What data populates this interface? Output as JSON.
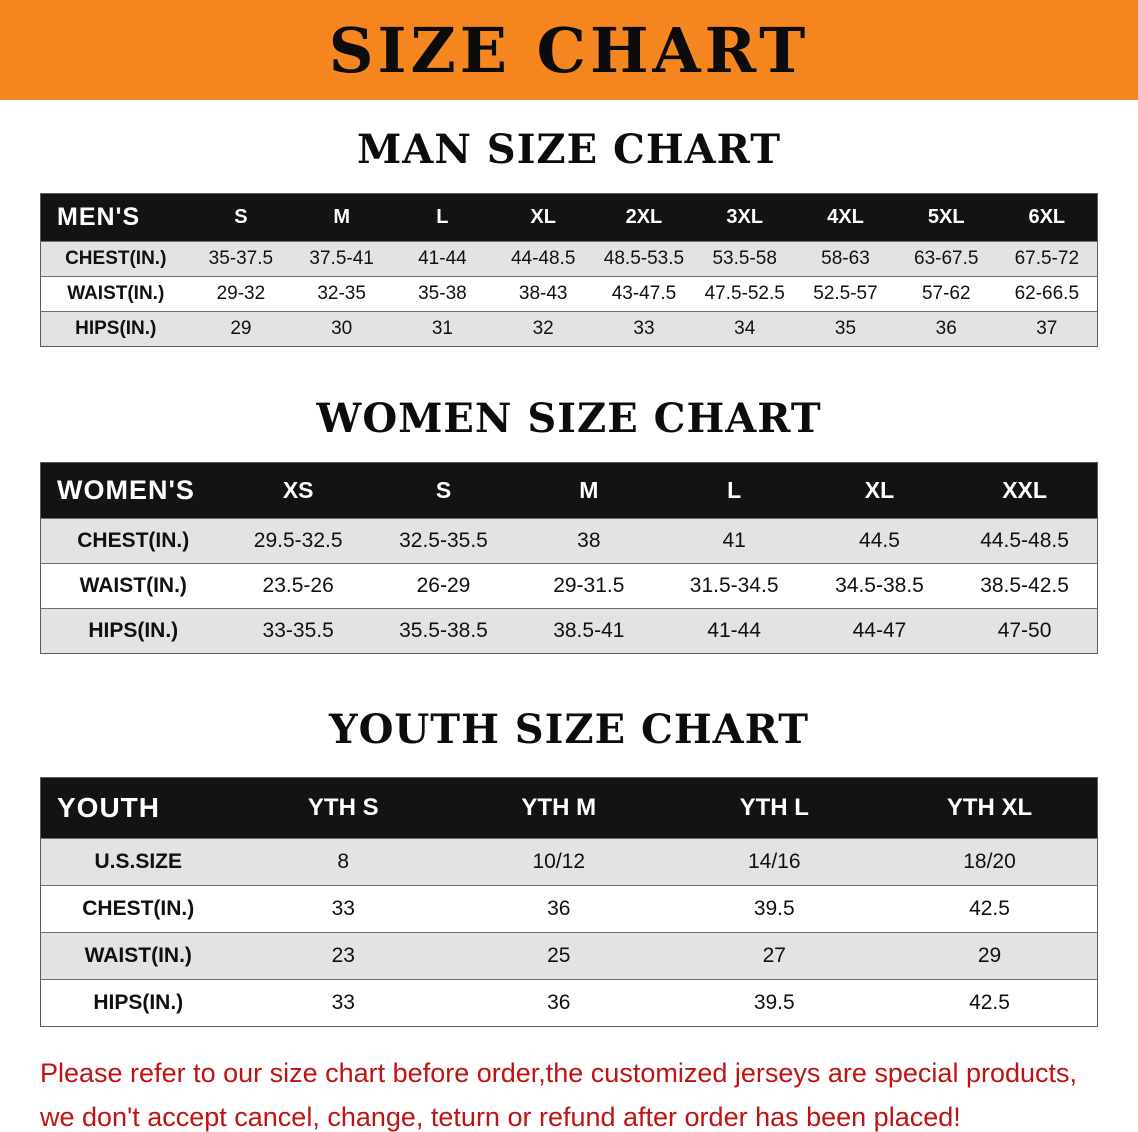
{
  "banner": {
    "title": "SIZE CHART"
  },
  "colors": {
    "banner_bg": "#F6861F",
    "table_header_bg": "#131313",
    "table_header_text": "#FFFFFF",
    "row_alt_bg": "#E3E3E3",
    "note_text": "#C01212"
  },
  "sections": [
    {
      "id": "men",
      "heading": "MAN SIZE CHART",
      "table": {
        "columns": [
          "MEN'S",
          "S",
          "M",
          "L",
          "XL",
          "2XL",
          "3XL",
          "4XL",
          "5XL",
          "6XL"
        ],
        "rows": [
          [
            "CHEST(IN.)",
            "35-37.5",
            "37.5-41",
            "41-44",
            "44-48.5",
            "48.5-53.5",
            "53.5-58",
            "58-63",
            "63-67.5",
            "67.5-72"
          ],
          [
            "WAIST(IN.)",
            "29-32",
            "32-35",
            "35-38",
            "38-43",
            "43-47.5",
            "47.5-52.5",
            "52.5-57",
            "57-62",
            "62-66.5"
          ],
          [
            "HIPS(IN.)",
            "29",
            "30",
            "31",
            "32",
            "33",
            "34",
            "35",
            "36",
            "37"
          ]
        ]
      }
    },
    {
      "id": "women",
      "heading": "WOMEN SIZE CHART",
      "table": {
        "columns": [
          "WOMEN'S",
          "XS",
          "S",
          "M",
          "L",
          "XL",
          "XXL"
        ],
        "rows": [
          [
            "CHEST(IN.)",
            "29.5-32.5",
            "32.5-35.5",
            "38",
            "41",
            "44.5",
            "44.5-48.5"
          ],
          [
            "WAIST(IN.)",
            "23.5-26",
            "26-29",
            "29-31.5",
            "31.5-34.5",
            "34.5-38.5",
            "38.5-42.5"
          ],
          [
            "HIPS(IN.)",
            "33-35.5",
            "35.5-38.5",
            "38.5-41",
            "41-44",
            "44-47",
            "47-50"
          ]
        ]
      }
    },
    {
      "id": "youth",
      "heading": "YOUTH SIZE CHART",
      "table": {
        "columns": [
          "YOUTH",
          "YTH S",
          "YTH M",
          "YTH L",
          "YTH XL"
        ],
        "rows": [
          [
            "U.S.SIZE",
            "8",
            "10/12",
            "14/16",
            "18/20"
          ],
          [
            "CHEST(IN.)",
            "33",
            "36",
            "39.5",
            "42.5"
          ],
          [
            "WAIST(IN.)",
            "23",
            "25",
            "27",
            "29"
          ],
          [
            "HIPS(IN.)",
            "33",
            "36",
            "39.5",
            "42.5"
          ]
        ]
      }
    }
  ],
  "footer": {
    "line1": "Please refer to our size chart before order,the customized jerseys are special products,",
    "line2": "we don't accept cancel, change, teturn or refund after order has been placed!"
  }
}
